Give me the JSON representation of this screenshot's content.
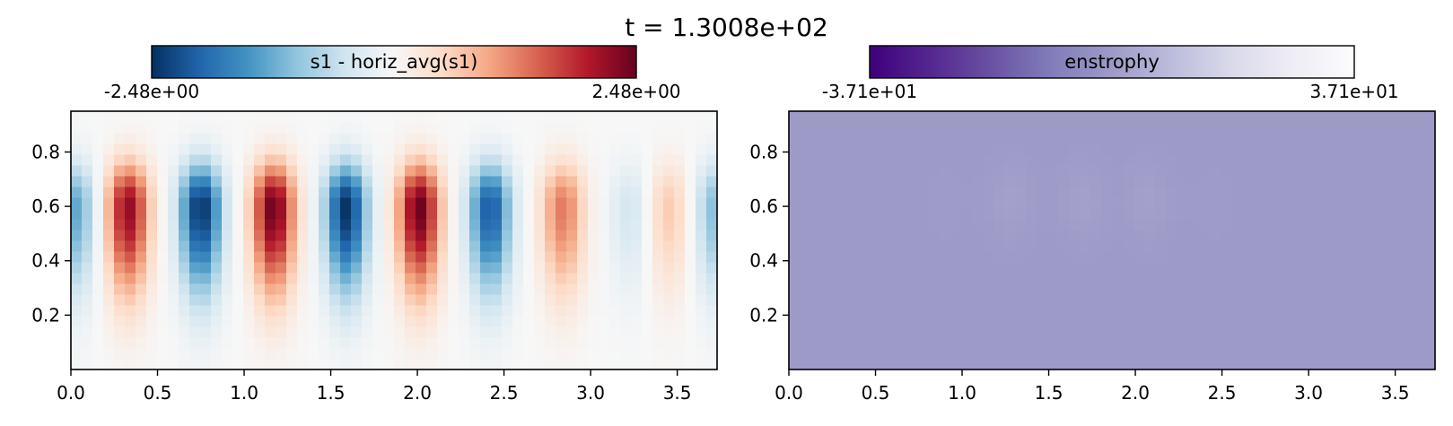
{
  "title": "t = 1.3008e+02",
  "panels": [
    {
      "colorbar_label": "s1 - horiz_avg(s1)",
      "cbar_min_label": "-2.48e+00",
      "cbar_max_label": "2.48e+00",
      "colormap": [
        "#053061",
        "#2166ac",
        "#4393c3",
        "#92c5de",
        "#d1e5f0",
        "#f7f7f7",
        "#fddbc7",
        "#f4a582",
        "#d6604d",
        "#b2182b",
        "#67001f"
      ]
    },
    {
      "colorbar_label": "enstrophy",
      "cbar_min_label": "-3.71e+01",
      "cbar_max_label": "3.71e+01",
      "colormap": [
        "#3f007d",
        "#54278f",
        "#6a51a3",
        "#807dba",
        "#9e9ac8",
        "#bcbddc",
        "#dadaeb",
        "#efedf5",
        "#fcfbfd"
      ]
    }
  ],
  "chart_data": [
    {
      "type": "heatmap",
      "title": "t = 1.3008e+02",
      "colorbar_label": "s1 - horiz_avg(s1)",
      "colorbar_range": [
        -2.48,
        2.48
      ],
      "xlim": [
        0.0,
        3.73
      ],
      "ylim": [
        0.0,
        0.95
      ],
      "xticks": [
        "0.0",
        "0.5",
        "1.0",
        "1.5",
        "2.0",
        "2.5",
        "3.0",
        "3.5"
      ],
      "yticks": [
        "0.2",
        "0.4",
        "0.6",
        "0.8"
      ],
      "pattern": {
        "column_x": [
          0.02,
          0.33,
          0.75,
          1.17,
          1.59,
          2.01,
          2.42,
          2.84,
          3.23,
          3.45,
          3.73
        ],
        "column_amplitude": [
          -1.3,
          2.2,
          -2.45,
          2.45,
          -2.45,
          2.45,
          -2.1,
          1.3,
          -0.45,
          0.65,
          -1.1
        ],
        "center_y": 0.6,
        "vertical_sigma": 0.11,
        "lower_tail_sigma": 0.22,
        "horizontal_sigma": 0.085
      }
    },
    {
      "type": "heatmap",
      "colorbar_label": "enstrophy",
      "colorbar_range": [
        -37.1,
        37.1
      ],
      "xlim": [
        0.0,
        3.73
      ],
      "ylim": [
        0.0,
        0.95
      ],
      "xticks": [
        "0.0",
        "0.5",
        "1.0",
        "1.5",
        "2.0",
        "2.5",
        "3.0",
        "3.5"
      ],
      "yticks": [
        "0.2",
        "0.4",
        "0.6",
        "0.8"
      ],
      "pattern": {
        "base_value": 0.0,
        "blob_x": [
          0.9,
          1.28,
          1.7,
          2.07,
          2.45
        ],
        "blob_amplitude": [
          0.3,
          1.6,
          1.7,
          1.6,
          0.3
        ],
        "center_y": 0.62,
        "vertical_sigma": 0.1,
        "horizontal_sigma": 0.09
      }
    }
  ]
}
